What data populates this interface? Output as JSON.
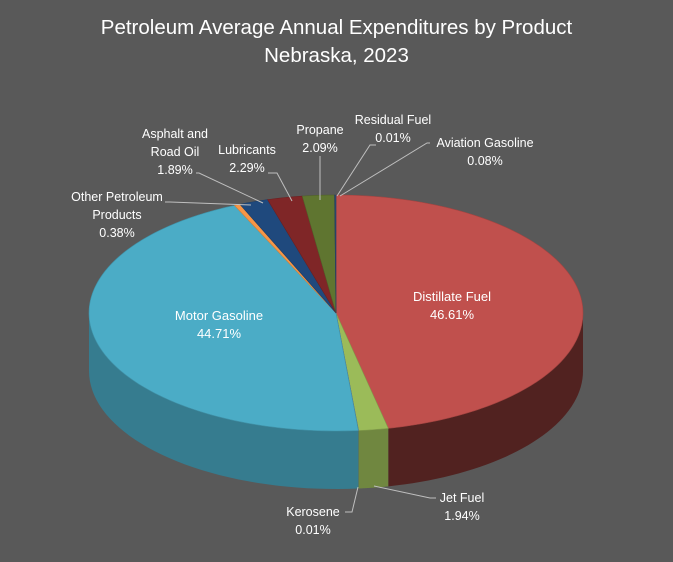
{
  "chart_data": {
    "type": "pie",
    "title": "Petroleum Average Annual Expenditures by Product",
    "subtitle": "Nebraska, 2023",
    "style": "3d-pie",
    "categories": [
      "Distillate Fuel",
      "Jet Fuel",
      "Kerosene",
      "Motor Gasoline",
      "Other Petroleum Products",
      "Asphalt and Road Oil",
      "Lubricants",
      "Propane",
      "Residual Fuel",
      "Aviation Gasoline"
    ],
    "values": [
      46.61,
      1.94,
      0.01,
      44.71,
      0.38,
      1.89,
      2.29,
      2.09,
      0.01,
      0.08
    ],
    "unit": "%",
    "colors": {
      "Distillate Fuel": "#c0504d",
      "Jet Fuel": "#9bbb59",
      "Kerosene": "#8064a2",
      "Motor Gasoline": "#4bacc6",
      "Other Petroleum Products": "#f79646",
      "Asphalt and Road Oil": "#1f497d",
      "Lubricants": "#7f2627",
      "Propane": "#5f7530",
      "Residual Fuel": "#4d3b62",
      "Aviation Gasoline": "#2c4d75"
    },
    "legend": "none (data labels)"
  },
  "labels": {
    "distillate": {
      "name": "Distillate Fuel",
      "value": "46.61%"
    },
    "jet": {
      "name": "Jet Fuel",
      "value": "1.94%"
    },
    "kerosene": {
      "name": "Kerosene",
      "value": "0.01%"
    },
    "motor": {
      "name": "Motor Gasoline",
      "value": "44.71%"
    },
    "other_l1": "Other Petroleum",
    "other_l2": "Products",
    "other_value": "0.38%",
    "asphalt_l1": "Asphalt and",
    "asphalt_l2": "Road Oil",
    "asphalt_value": "1.89%",
    "lubricants": {
      "name": "Lubricants",
      "value": "2.29%"
    },
    "propane": {
      "name": "Propane",
      "value": "2.09%"
    },
    "residual": {
      "name": "Residual Fuel",
      "value": "0.01%"
    },
    "aviation": {
      "name": "Aviation Gasoline",
      "value": "0.08%"
    }
  }
}
